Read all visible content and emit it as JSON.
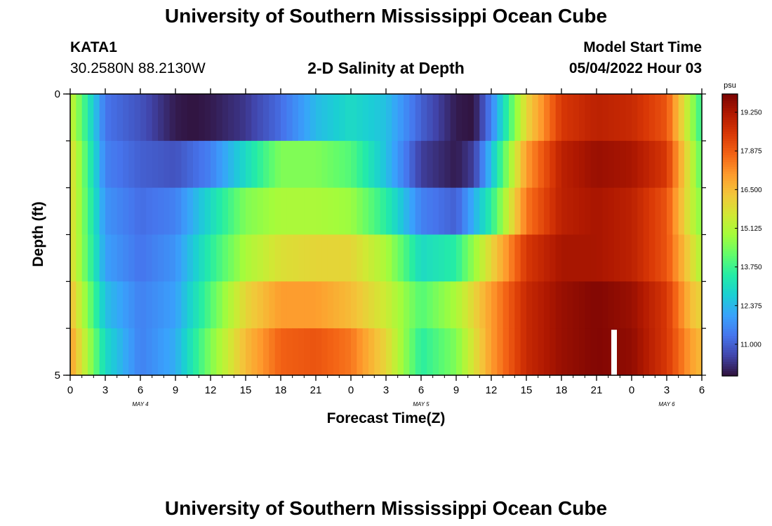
{
  "header": {
    "title": "University of Southern Mississippi Ocean Cube",
    "station_id": "KATA1",
    "station_coords": "30.2580N  88.2130W",
    "plot_title": "2-D Salinity at Depth",
    "model_label": "Model Start Time",
    "model_time": "05/04/2022 Hour 03"
  },
  "footer": {
    "title": "University of Southern Mississippi Ocean Cube"
  },
  "chart_data": {
    "type": "heatmap",
    "title": "2-D Salinity at Depth",
    "xlabel": "Forecast Time(Z)",
    "ylabel": "Depth (ft)",
    "y_tick_labels": [
      "0",
      "5"
    ],
    "ylim": [
      0,
      5
    ],
    "x_tick_labels": [
      "0",
      "3",
      "6",
      "9",
      "12",
      "15",
      "18",
      "21",
      "0",
      "3",
      "6",
      "9",
      "12",
      "15",
      "18",
      "21",
      "0",
      "3",
      "6"
    ],
    "date_labels": [
      {
        "label": "MAY 4",
        "at_hour": 6
      },
      {
        "label": "MAY 5",
        "at_hour": 30
      },
      {
        "label": "MAY 6",
        "at_hour": 51
      }
    ],
    "x_hours_range": [
      0,
      54
    ],
    "depth_levels_ft": [
      0.25,
      1.0,
      2.0,
      3.0,
      4.0,
      4.75
    ],
    "colorbar": {
      "unit": "psu",
      "min": 9.875,
      "max": 19.9,
      "tick_values": [
        11.0,
        12.375,
        13.75,
        15.125,
        16.5,
        17.875,
        19.25
      ],
      "tick_labels": [
        "11.000",
        "12.375",
        "13.750",
        "15.125",
        "16.500",
        "17.875",
        "19.250"
      ]
    },
    "missing_data": [
      {
        "hour": 46.5,
        "depth_level": 5
      }
    ],
    "series": [
      {
        "name": "0.25 ft",
        "hours": [
          0,
          3,
          6,
          9,
          10.5,
          12,
          15,
          18,
          21,
          24,
          27,
          30,
          33,
          34.5,
          36,
          39,
          42,
          45,
          48,
          51,
          53,
          54
        ],
        "values": [
          15.5,
          11.3,
          10.8,
          10.0,
          9.9,
          10.0,
          10.4,
          11.2,
          12.4,
          13.0,
          12.5,
          11.0,
          10.0,
          9.9,
          11.5,
          16.0,
          18.5,
          19.0,
          18.8,
          18.0,
          15.0,
          13.5
        ]
      },
      {
        "name": "1.0 ft",
        "hours": [
          0,
          3,
          6,
          9,
          12,
          15,
          18,
          21,
          24,
          27,
          30,
          33,
          34.5,
          36,
          39,
          42,
          45,
          48,
          51,
          53,
          54
        ],
        "values": [
          16.0,
          11.5,
          11.0,
          10.8,
          11.5,
          13.0,
          14.5,
          14.5,
          14.0,
          12.5,
          10.5,
          10.0,
          10.5,
          12.5,
          17.0,
          19.0,
          19.5,
          19.3,
          18.5,
          15.5,
          14.0
        ]
      },
      {
        "name": "2.0 ft",
        "hours": [
          0,
          3,
          6,
          9,
          12,
          15,
          18,
          21,
          24,
          27,
          30,
          33,
          36,
          39,
          42,
          45,
          48,
          51,
          53,
          54
        ],
        "values": [
          16.0,
          11.8,
          11.2,
          11.5,
          13.0,
          14.5,
          15.0,
          15.0,
          14.8,
          13.5,
          11.5,
          11.0,
          13.5,
          17.5,
          19.0,
          19.3,
          19.0,
          18.0,
          15.5,
          14.5
        ]
      },
      {
        "name": "3.0 ft",
        "hours": [
          0,
          3,
          6,
          9,
          12,
          15,
          18,
          21,
          24,
          27,
          30,
          33,
          36,
          39,
          42,
          45,
          48,
          51,
          53,
          54
        ],
        "values": [
          16.0,
          12.0,
          11.3,
          11.8,
          13.5,
          15.0,
          15.8,
          16.0,
          16.0,
          15.0,
          13.0,
          13.5,
          16.0,
          18.5,
          19.3,
          19.3,
          19.0,
          18.0,
          16.0,
          15.0
        ]
      },
      {
        "name": "4.0 ft",
        "hours": [
          0,
          3,
          6,
          9,
          12,
          15,
          18,
          21,
          24,
          27,
          30,
          33,
          36,
          39,
          42,
          45,
          48,
          51,
          53,
          54
        ],
        "values": [
          16.5,
          12.5,
          11.5,
          12.0,
          14.0,
          16.0,
          17.0,
          17.0,
          16.5,
          15.5,
          14.0,
          15.0,
          17.0,
          18.8,
          19.5,
          19.8,
          19.5,
          18.5,
          16.5,
          16.0
        ]
      },
      {
        "name": "4.75 ft",
        "hours": [
          0,
          3,
          6,
          9,
          12,
          15,
          18,
          21,
          24,
          27,
          30,
          33,
          36,
          39,
          42,
          45,
          48,
          51,
          53,
          54
        ],
        "values": [
          17.0,
          13.0,
          11.5,
          12.2,
          14.5,
          16.5,
          17.8,
          18.0,
          17.5,
          16.0,
          13.5,
          14.5,
          17.0,
          18.8,
          19.5,
          19.8,
          19.6,
          18.5,
          17.0,
          16.5
        ]
      }
    ]
  },
  "colors": {
    "map": [
      "#30123b",
      "#4145ab",
      "#4675ed",
      "#39a2fc",
      "#1bcfd4",
      "#24eca6",
      "#61fc6c",
      "#a4fc3b",
      "#d1e834",
      "#f3c63a",
      "#fe9b2d",
      "#f36315",
      "#d93806",
      "#b11901",
      "#7a0403"
    ],
    "missing": "#ffffff"
  }
}
